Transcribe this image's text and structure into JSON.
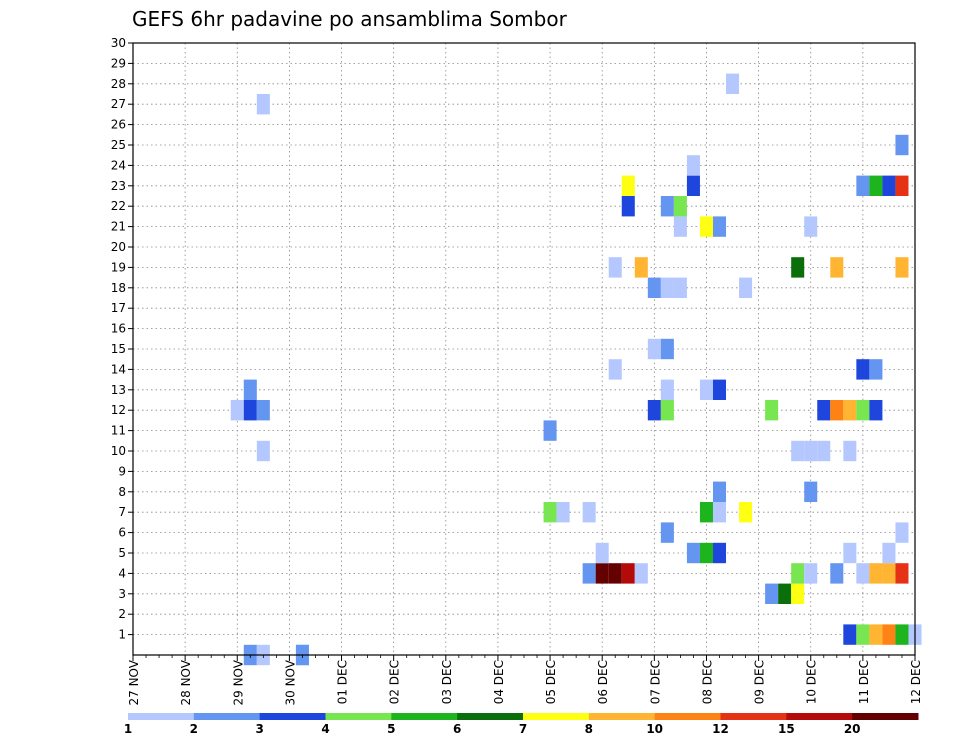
{
  "chart_data": {
    "type": "heatmap",
    "title": "GEFS 6hr padavine po ansamblima Sombor",
    "x_tick_labels": [
      "27 NOV",
      "28 NOV",
      "29 NOV",
      "30 NOV",
      "01 DEC",
      "02 DEC",
      "03 DEC",
      "04 DEC",
      "05 DEC",
      "06 DEC",
      "07 DEC",
      "08 DEC",
      "09 DEC",
      "10 DEC",
      "11 DEC",
      "12 DEC"
    ],
    "y_tick_labels": [
      "1",
      "2",
      "3",
      "4",
      "5",
      "6",
      "7",
      "8",
      "9",
      "10",
      "11",
      "12",
      "13",
      "14",
      "15",
      "16",
      "17",
      "18",
      "19",
      "20",
      "21",
      "22",
      "23",
      "24",
      "25",
      "26",
      "27",
      "28",
      "29",
      "30"
    ],
    "ylim": [
      0,
      30
    ],
    "grid": true,
    "colorbar": {
      "labels": [
        "1",
        "2",
        "3",
        "4",
        "5",
        "6",
        "7",
        "8",
        "10",
        "12",
        "15",
        "20"
      ],
      "colors": [
        "#b4c8ff",
        "#6495f0",
        "#1e46dc",
        "#78e650",
        "#1eb41e",
        "#0a6e0a",
        "#ffff14",
        "#ffb432",
        "#ff8214",
        "#e63214",
        "#b40a0a",
        "#640000"
      ]
    },
    "cells": [
      {
        "t": 9,
        "m": 0,
        "c": 1
      },
      {
        "t": 10,
        "m": 0,
        "c": 0
      },
      {
        "t": 13,
        "m": 0,
        "c": 0
      },
      {
        "t": 13,
        "m": 0,
        "c": 1
      },
      {
        "t": 55,
        "m": 1,
        "c": 2
      },
      {
        "t": 56,
        "m": 1,
        "c": 3
      },
      {
        "t": 57,
        "m": 1,
        "c": 7
      },
      {
        "t": 58,
        "m": 1,
        "c": 8
      },
      {
        "t": 59,
        "m": 1,
        "c": 4
      },
      {
        "t": 60,
        "m": 1,
        "c": 0
      },
      {
        "t": 49,
        "m": 3,
        "c": 1
      },
      {
        "t": 50,
        "m": 3,
        "c": 5
      },
      {
        "t": 51,
        "m": 3,
        "c": 6
      },
      {
        "t": 35,
        "m": 4,
        "c": 1
      },
      {
        "t": 36,
        "m": 4,
        "c": 11
      },
      {
        "t": 37,
        "m": 4,
        "c": 11
      },
      {
        "t": 38,
        "m": 4,
        "c": 10
      },
      {
        "t": 39,
        "m": 4,
        "c": 0
      },
      {
        "t": 51,
        "m": 4,
        "c": 3
      },
      {
        "t": 52,
        "m": 4,
        "c": 0
      },
      {
        "t": 54,
        "m": 4,
        "c": 1
      },
      {
        "t": 56,
        "m": 4,
        "c": 0
      },
      {
        "t": 57,
        "m": 4,
        "c": 7
      },
      {
        "t": 58,
        "m": 4,
        "c": 7
      },
      {
        "t": 59,
        "m": 4,
        "c": 9
      },
      {
        "t": 36,
        "m": 5,
        "c": 0
      },
      {
        "t": 43,
        "m": 5,
        "c": 1
      },
      {
        "t": 44,
        "m": 5,
        "c": 4
      },
      {
        "t": 45,
        "m": 5,
        "c": 2
      },
      {
        "t": 55,
        "m": 5,
        "c": 0
      },
      {
        "t": 58,
        "m": 5,
        "c": 0
      },
      {
        "t": 41,
        "m": 6,
        "c": 1
      },
      {
        "t": 59,
        "m": 6,
        "c": 0
      },
      {
        "t": 32,
        "m": 7,
        "c": 3
      },
      {
        "t": 33,
        "m": 7,
        "c": 0
      },
      {
        "t": 35,
        "m": 7,
        "c": 0
      },
      {
        "t": 44,
        "m": 7,
        "c": 4
      },
      {
        "t": 45,
        "m": 7,
        "c": 0
      },
      {
        "t": 47,
        "m": 7,
        "c": 6
      },
      {
        "t": 45,
        "m": 8,
        "c": 1
      },
      {
        "t": 52,
        "m": 8,
        "c": 1
      },
      {
        "t": 10,
        "m": 10,
        "c": 0
      },
      {
        "t": 51,
        "m": 10,
        "c": 0
      },
      {
        "t": 52,
        "m": 10,
        "c": 0
      },
      {
        "t": 53,
        "m": 10,
        "c": 0
      },
      {
        "t": 55,
        "m": 10,
        "c": 0
      },
      {
        "t": 32,
        "m": 11,
        "c": 1
      },
      {
        "t": 8,
        "m": 12,
        "c": 0
      },
      {
        "t": 9,
        "m": 12,
        "c": 2
      },
      {
        "t": 10,
        "m": 12,
        "c": 1
      },
      {
        "t": 40,
        "m": 12,
        "c": 2
      },
      {
        "t": 41,
        "m": 12,
        "c": 3
      },
      {
        "t": 49,
        "m": 12,
        "c": 3
      },
      {
        "t": 53,
        "m": 12,
        "c": 2
      },
      {
        "t": 54,
        "m": 12,
        "c": 8
      },
      {
        "t": 55,
        "m": 12,
        "c": 7
      },
      {
        "t": 56,
        "m": 12,
        "c": 3
      },
      {
        "t": 57,
        "m": 12,
        "c": 2
      },
      {
        "t": 9,
        "m": 13,
        "c": 1
      },
      {
        "t": 41,
        "m": 13,
        "c": 0
      },
      {
        "t": 44,
        "m": 13,
        "c": 0
      },
      {
        "t": 45,
        "m": 13,
        "c": 2
      },
      {
        "t": 37,
        "m": 14,
        "c": 0
      },
      {
        "t": 56,
        "m": 14,
        "c": 2
      },
      {
        "t": 57,
        "m": 14,
        "c": 1
      },
      {
        "t": 40,
        "m": 15,
        "c": 0
      },
      {
        "t": 41,
        "m": 15,
        "c": 1
      },
      {
        "t": 40,
        "m": 18,
        "c": 1
      },
      {
        "t": 41,
        "m": 18,
        "c": 0
      },
      {
        "t": 42,
        "m": 18,
        "c": 0
      },
      {
        "t": 47,
        "m": 18,
        "c": 0
      },
      {
        "t": 37,
        "m": 19,
        "c": 0
      },
      {
        "t": 39,
        "m": 19,
        "c": 7
      },
      {
        "t": 51,
        "m": 19,
        "c": 5
      },
      {
        "t": 54,
        "m": 19,
        "c": 7
      },
      {
        "t": 59,
        "m": 19,
        "c": 7
      },
      {
        "t": 42,
        "m": 21,
        "c": 0
      },
      {
        "t": 44,
        "m": 21,
        "c": 6
      },
      {
        "t": 45,
        "m": 21,
        "c": 1
      },
      {
        "t": 52,
        "m": 21,
        "c": 0
      },
      {
        "t": 38,
        "m": 22,
        "c": 2
      },
      {
        "t": 41,
        "m": 22,
        "c": 1
      },
      {
        "t": 42,
        "m": 22,
        "c": 3
      },
      {
        "t": 38,
        "m": 23,
        "c": 6
      },
      {
        "t": 43,
        "m": 23,
        "c": 2
      },
      {
        "t": 56,
        "m": 23,
        "c": 1
      },
      {
        "t": 57,
        "m": 23,
        "c": 4
      },
      {
        "t": 58,
        "m": 23,
        "c": 2
      },
      {
        "t": 59,
        "m": 23,
        "c": 9
      },
      {
        "t": 43,
        "m": 24,
        "c": 0
      },
      {
        "t": 59,
        "m": 25,
        "c": 1
      },
      {
        "t": 10,
        "m": 27,
        "c": 0
      },
      {
        "t": 46,
        "m": 28,
        "c": 0
      }
    ]
  }
}
